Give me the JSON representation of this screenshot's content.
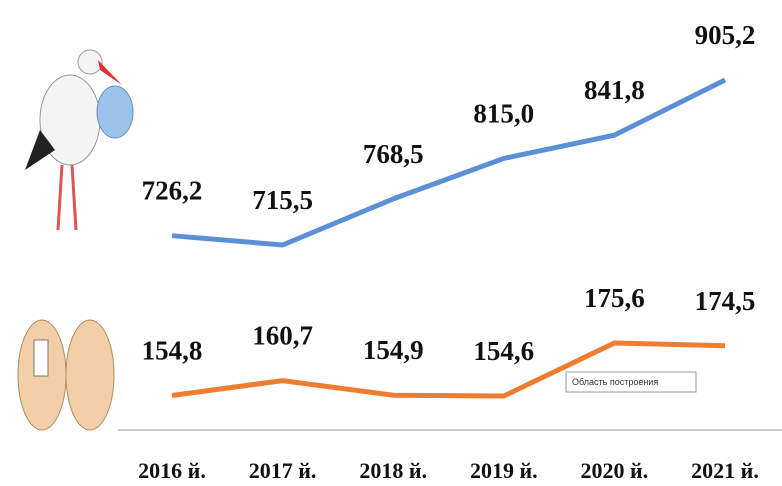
{
  "chart_data": {
    "type": "line",
    "categories": [
      "2016 й.",
      "2017 й.",
      "2018 й.",
      "2019 й.",
      "2020 й.",
      "2021 й."
    ],
    "series": [
      {
        "color": "#5b8fd6",
        "values": [
          726.2,
          715.5,
          768.5,
          815.0,
          841.8,
          905.2
        ],
        "value_labels": [
          "726,2",
          "715,5",
          "768,5",
          "815,0",
          "841,8",
          "905,2"
        ]
      },
      {
        "color": "#ee7d31",
        "values": [
          154.8,
          160.7,
          154.9,
          154.6,
          175.6,
          174.5
        ],
        "value_labels": [
          "154,8",
          "160,7",
          "154,9",
          "154,6",
          "175,6",
          "174,5"
        ]
      }
    ],
    "annotations": [
      "Область построения"
    ]
  }
}
